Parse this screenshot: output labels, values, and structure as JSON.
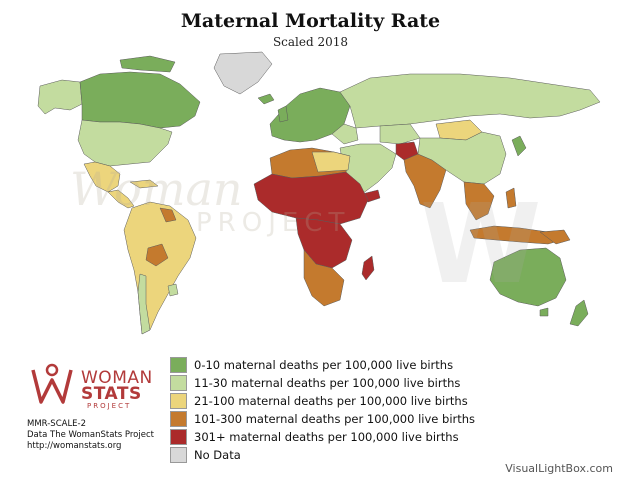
{
  "header": {
    "title": "Maternal Mortality Rate",
    "subtitle": "Scaled 2018"
  },
  "colors": {
    "band_0_10": "#7aad5b",
    "band_11_30": "#c3dc9f",
    "band_21_100": "#ecd57c",
    "band_101_300": "#c47a2e",
    "band_301_plus": "#ab2b2b",
    "no_data": "#d8d8d8",
    "water": "#ffffff",
    "border": "#5a5a5a"
  },
  "legend": {
    "items": [
      {
        "label": "0-10 maternal deaths per 100,000 live births",
        "color": "#7aad5b"
      },
      {
        "label": "11-30 maternal deaths per 100,000 live births",
        "color": "#c3dc9f"
      },
      {
        "label": "21-100 maternal deaths per 100,000 live births",
        "color": "#ecd57c"
      },
      {
        "label": "101-300 maternal deaths per 100,000 live births",
        "color": "#c47a2e"
      },
      {
        "label": "301+ maternal deaths per 100,000 live births",
        "color": "#ab2b2b"
      },
      {
        "label": "No Data",
        "color": "#d8d8d8"
      }
    ]
  },
  "logo": {
    "line1": "WOMAN",
    "line2": "STATS",
    "line3": "PROJECT"
  },
  "footer": {
    "code": "MMR-SCALE-2",
    "source": "Data The WomanStats Project",
    "url": "http://womanstats.org"
  },
  "credit": "VisualLightBox.com",
  "watermark": {
    "text1": "Woman",
    "text2": "PROJECT"
  },
  "regions": [
    {
      "name": "canada",
      "band": "0-10"
    },
    {
      "name": "alaska",
      "band": "11-30"
    },
    {
      "name": "greenland",
      "band": "no-data"
    },
    {
      "name": "usa",
      "band": "11-30"
    },
    {
      "name": "mexico",
      "band": "21-100"
    },
    {
      "name": "central-america",
      "band": "21-100"
    },
    {
      "name": "south-america",
      "band": "21-100"
    },
    {
      "name": "bolivia-guyana",
      "band": "101-300"
    },
    {
      "name": "chile-uruguay",
      "band": "11-30"
    },
    {
      "name": "europe",
      "band": "0-10"
    },
    {
      "name": "russia",
      "band": "11-30"
    },
    {
      "name": "north-africa",
      "band": "21-100"
    },
    {
      "name": "west-africa",
      "band": "301+"
    },
    {
      "name": "central-africa",
      "band": "301+"
    },
    {
      "name": "south-africa",
      "band": "101-300"
    },
    {
      "name": "madagascar",
      "band": "301+"
    },
    {
      "name": "middle-east",
      "band": "11-30"
    },
    {
      "name": "afghanistan",
      "band": "301+"
    },
    {
      "name": "south-asia",
      "band": "101-300"
    },
    {
      "name": "china",
      "band": "11-30"
    },
    {
      "name": "mongolia",
      "band": "21-100"
    },
    {
      "name": "southeast-asia",
      "band": "101-300"
    },
    {
      "name": "indonesia",
      "band": "101-300"
    },
    {
      "name": "japan",
      "band": "0-10"
    },
    {
      "name": "australia",
      "band": "0-10"
    },
    {
      "name": "new-zealand",
      "band": "0-10"
    }
  ]
}
